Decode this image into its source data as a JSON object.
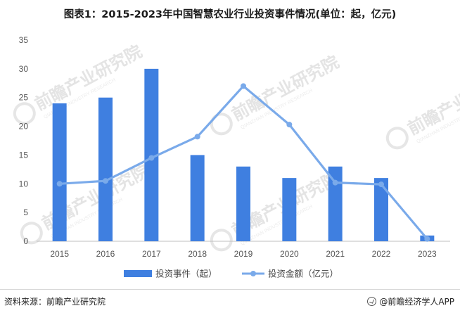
{
  "title": "图表1：2015-2023年中国智慧农业行业投资事件情况(单位：起，亿元)",
  "source": "资料来源：前瞻产业研究院",
  "brand": "@前瞻经济学人APP",
  "watermark": {
    "text": "前瞻产业研究院",
    "sub": "QIANZHAN INDUSTRY RESEARCH"
  },
  "colors": {
    "bar": "#3f7fe0",
    "line": "#7aaaea",
    "axis": "#bfbfbf"
  },
  "chart_data": {
    "type": "bar",
    "categories": [
      "2015",
      "2016",
      "2017",
      "2018",
      "2019",
      "2020",
      "2021",
      "2022",
      "2023"
    ],
    "ylim": [
      0,
      35
    ],
    "yticks": [
      0,
      5,
      10,
      15,
      20,
      25,
      30,
      35
    ],
    "grid": false,
    "legend_position": "bottom",
    "series": [
      {
        "name": "投资事件（起）",
        "type": "bar",
        "values": [
          24,
          25,
          30,
          15,
          13,
          11,
          13,
          11,
          1
        ]
      },
      {
        "name": "投资金额（亿元）",
        "type": "line",
        "values": [
          10,
          10.5,
          14.5,
          18.2,
          27,
          20.3,
          10.2,
          9.9,
          0.4
        ]
      }
    ]
  }
}
